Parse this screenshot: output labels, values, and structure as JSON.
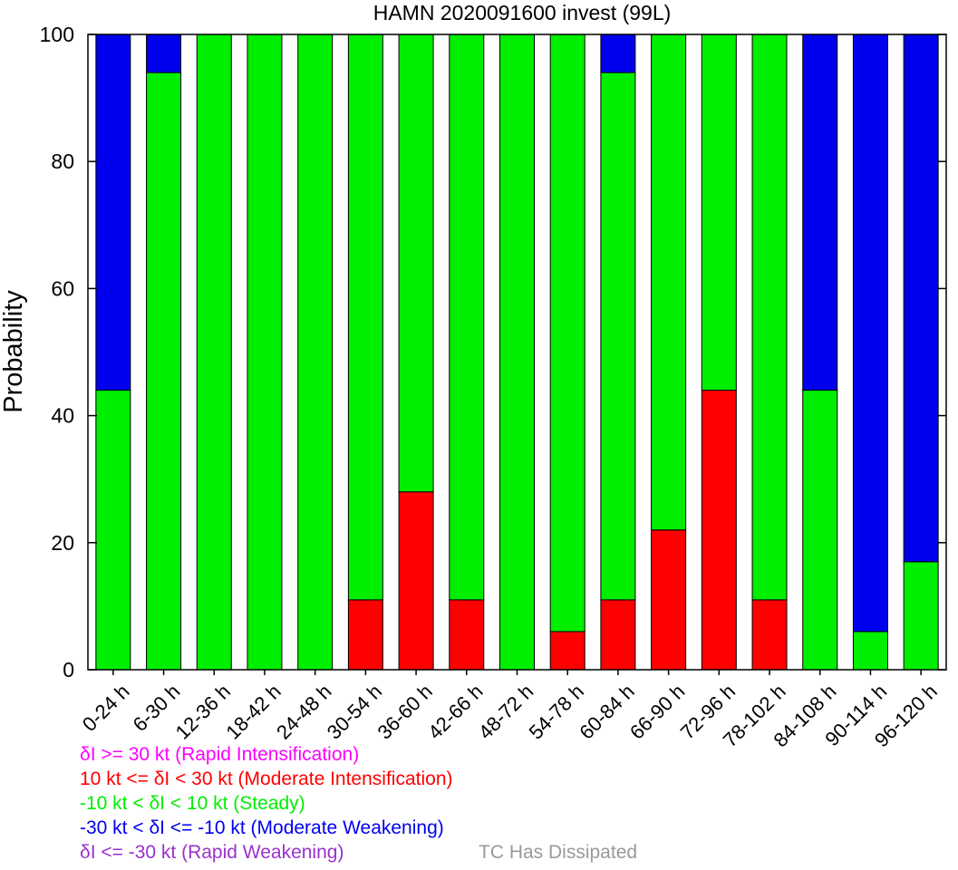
{
  "chart_data": {
    "type": "bar",
    "stacked": true,
    "title": "HAMN 2020091600 invest (99L)",
    "xlabel": "",
    "ylabel": "Probability",
    "ylim": [
      0,
      100
    ],
    "yticks": [
      0,
      20,
      40,
      60,
      80,
      100
    ],
    "grid": false,
    "categories": [
      "0-24 h",
      "6-30 h",
      "12-36 h",
      "18-42 h",
      "24-48 h",
      "30-54 h",
      "36-60 h",
      "42-66 h",
      "48-72 h",
      "54-78 h",
      "60-84 h",
      "66-90 h",
      "72-96 h",
      "78-102 h",
      "84-108 h",
      "90-114 h",
      "96-120 h"
    ],
    "series": [
      {
        "key": "rapid_intensification",
        "color": "#ff00ff",
        "values": [
          0,
          0,
          0,
          0,
          0,
          0,
          0,
          0,
          0,
          0,
          0,
          0,
          0,
          0,
          0,
          0,
          0
        ]
      },
      {
        "key": "moderate_intensification",
        "color": "#ff0000",
        "values": [
          0,
          0,
          0,
          0,
          0,
          11,
          28,
          11,
          0,
          6,
          11,
          22,
          44,
          11,
          0,
          0,
          0
        ]
      },
      {
        "key": "steady",
        "color": "#00ee00",
        "values": [
          44,
          94,
          100,
          100,
          100,
          89,
          72,
          89,
          100,
          94,
          83,
          78,
          56,
          89,
          44,
          6,
          17
        ]
      },
      {
        "key": "moderate_weakening",
        "color": "#0000ee",
        "values": [
          56,
          6,
          0,
          0,
          0,
          0,
          0,
          0,
          0,
          0,
          6,
          0,
          0,
          0,
          56,
          94,
          83
        ]
      },
      {
        "key": "rapid_weakening",
        "color": "#9932cc",
        "values": [
          0,
          0,
          0,
          0,
          0,
          0,
          0,
          0,
          0,
          0,
          0,
          0,
          0,
          0,
          0,
          0,
          0
        ]
      }
    ]
  },
  "legend": {
    "items": [
      {
        "text": "δI >= 30 kt (Rapid Intensification)",
        "color": "#ff00ff"
      },
      {
        "text": "10 kt <= δI < 30 kt (Moderate Intensification)",
        "color": "#ff0000"
      },
      {
        "text": "-10 kt < δI < 10 kt (Steady)",
        "color": "#00ee00"
      },
      {
        "text": "-30 kt < δI <= -10 kt (Moderate Weakening)",
        "color": "#0000ee"
      },
      {
        "text": "δI <= -30 kt (Rapid Weakening)",
        "color": "#9932cc"
      }
    ],
    "dissipated": {
      "text": "TC Has Dissipated",
      "color": "#999999"
    }
  }
}
